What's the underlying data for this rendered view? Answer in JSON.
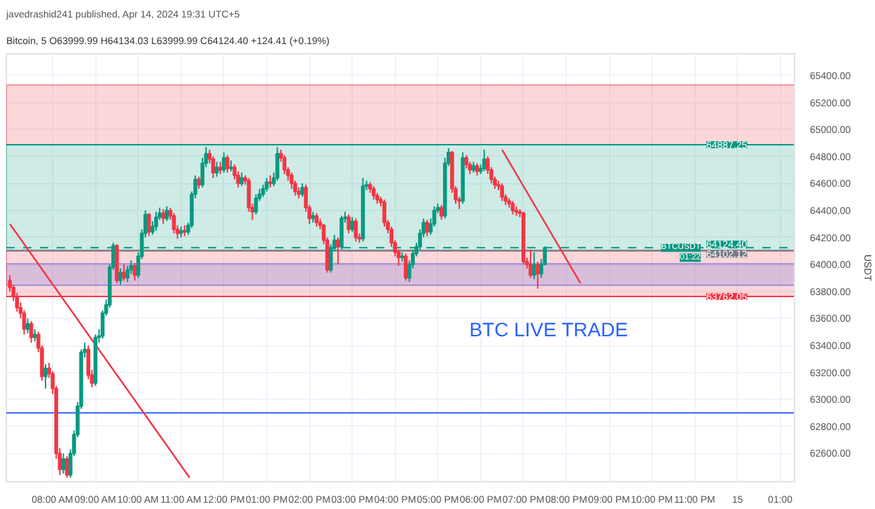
{
  "chart_data": {
    "type": "candlestick",
    "title": "javedrashid241 published, Apr 14, 2024 19:31 UTC+5",
    "subtitle": "Bitcoin, 5  O63999.99 H64134.03 L63999.99 C64124.40 +124.41 (+0.19%)",
    "ylabel": "USDT",
    "colors": [
      "#f23645",
      "#f23645",
      "#f23645",
      "#f23645",
      "#f23645",
      "#089981",
      "#f23645",
      "#089981",
      "#f23645",
      "#f23645",
      "#089981",
      "#f23645",
      "#f23645",
      "#f23645",
      "#f23645",
      "#089981",
      "#f23645",
      "#089981",
      "#089981",
      "#089981",
      "#089981",
      "#089981",
      "#f23645",
      "#f23645",
      "#089981",
      "#089981",
      "#089981",
      "#089981",
      "#089981",
      "#089981",
      "#f23645",
      "#089981",
      "#f23645",
      "#089981",
      "#089981",
      "#f23645",
      "#089981",
      "#089981",
      "#089981",
      "#f23645",
      "#089981",
      "#089981",
      "#089981",
      "#f23645",
      "#089981",
      "#f23645",
      "#f23645",
      "#f23645",
      "#089981",
      "#f23645",
      "#089981",
      "#089981",
      "#089981",
      "#f23645",
      "#089981",
      "#089981",
      "#f23645",
      "#f23645",
      "#089981",
      "#f23645",
      "#089981",
      "#f23645",
      "#089981",
      "#f23645",
      "#f23645",
      "#089981",
      "#f23645",
      "#f23645",
      "#f23645",
      "#089981",
      "#089981",
      "#089981",
      "#089981",
      "#f23645",
      "#089981",
      "#089981",
      "#f23645",
      "#f23645",
      "#f23645",
      "#f23645",
      "#f23645",
      "#f23645",
      "#089981",
      "#f23645",
      "#f23645",
      "#089981",
      "#f23645",
      "#f23645",
      "#f23645",
      "#f23645",
      "#089981",
      "#089981",
      "#f23645",
      "#089981",
      "#089981",
      "#f23645",
      "#089981",
      "#f23645",
      "#f23645",
      "#089981",
      "#089981",
      "#f23645",
      "#f23645",
      "#f23645",
      "#f23645",
      "#f23645",
      "#f23645",
      "#f23645",
      "#f23645",
      "#f23645",
      "#089981",
      "#f23645",
      "#089981",
      "#089981",
      "#089981",
      "#089981",
      "#089981",
      "#f23645",
      "#089981",
      "#089981",
      "#089981",
      "#f23645",
      "#089981",
      "#089981",
      "#f23645",
      "#f23645",
      "#f23645",
      "#089981",
      "#f23645",
      "#f23645",
      "#089981",
      "#f23645",
      "#089981",
      "#089981",
      "#f23645",
      "#f23645",
      "#f23645",
      "#f23645",
      "#f23645",
      "#f23645",
      "#f23645",
      "#f23645",
      "#f23645",
      "#f23645",
      "#f23645",
      "#f23645",
      "#f23645",
      "#089981",
      "#f23645",
      "#089981",
      "#089981"
    ],
    "x": [
      "2024-04-14T07:00",
      "2024-04-14T07:05",
      "2024-04-14T07:10",
      "2024-04-14T07:15",
      "2024-04-14T07:20",
      "2024-04-14T07:25",
      "2024-04-14T07:30",
      "2024-04-14T07:35",
      "2024-04-14T07:40",
      "2024-04-14T07:45",
      "2024-04-14T07:50",
      "2024-04-14T07:55",
      "2024-04-14T08:00",
      "2024-04-14T08:05",
      "2024-04-14T08:10",
      "2024-04-14T08:15",
      "2024-04-14T08:20",
      "2024-04-14T08:25",
      "2024-04-14T08:30",
      "2024-04-14T08:35",
      "2024-04-14T08:40",
      "2024-04-14T08:45",
      "2024-04-14T08:50",
      "2024-04-14T08:55",
      "2024-04-14T09:00",
      "2024-04-14T09:05",
      "2024-04-14T09:10",
      "2024-04-14T09:15",
      "2024-04-14T09:20",
      "2024-04-14T09:25",
      "2024-04-14T09:30",
      "2024-04-14T09:35",
      "2024-04-14T09:40",
      "2024-04-14T09:45",
      "2024-04-14T09:50",
      "2024-04-14T09:55",
      "2024-04-14T10:00",
      "2024-04-14T10:05",
      "2024-04-14T10:10",
      "2024-04-14T10:15",
      "2024-04-14T10:20",
      "2024-04-14T10:25",
      "2024-04-14T10:30",
      "2024-04-14T10:35",
      "2024-04-14T10:40",
      "2024-04-14T10:45",
      "2024-04-14T10:50",
      "2024-04-14T10:55",
      "2024-04-14T11:00",
      "2024-04-14T11:05",
      "2024-04-14T11:10",
      "2024-04-14T11:15",
      "2024-04-14T11:20",
      "2024-04-14T11:25",
      "2024-04-14T11:30",
      "2024-04-14T11:35",
      "2024-04-14T11:40",
      "2024-04-14T11:45",
      "2024-04-14T11:50",
      "2024-04-14T11:55",
      "2024-04-14T12:00",
      "2024-04-14T12:05",
      "2024-04-14T12:10",
      "2024-04-14T12:15",
      "2024-04-14T12:20",
      "2024-04-14T12:25",
      "2024-04-14T12:30",
      "2024-04-14T12:35",
      "2024-04-14T12:40",
      "2024-04-14T12:45",
      "2024-04-14T12:50",
      "2024-04-14T12:55",
      "2024-04-14T13:00",
      "2024-04-14T13:05",
      "2024-04-14T13:10",
      "2024-04-14T13:15",
      "2024-04-14T13:20",
      "2024-04-14T13:25",
      "2024-04-14T13:30",
      "2024-04-14T13:35",
      "2024-04-14T13:40",
      "2024-04-14T13:45",
      "2024-04-14T13:50",
      "2024-04-14T13:55",
      "2024-04-14T14:00",
      "2024-04-14T14:05",
      "2024-04-14T14:10",
      "2024-04-14T14:15",
      "2024-04-14T14:20",
      "2024-04-14T14:25",
      "2024-04-14T14:30",
      "2024-04-14T14:35",
      "2024-04-14T14:40",
      "2024-04-14T14:45",
      "2024-04-14T14:50",
      "2024-04-14T14:55",
      "2024-04-14T15:00",
      "2024-04-14T15:05",
      "2024-04-14T15:10",
      "2024-04-14T15:15",
      "2024-04-14T15:20",
      "2024-04-14T15:25",
      "2024-04-14T15:30",
      "2024-04-14T15:35",
      "2024-04-14T15:40",
      "2024-04-14T15:45",
      "2024-04-14T15:50",
      "2024-04-14T15:55",
      "2024-04-14T16:00",
      "2024-04-14T16:05",
      "2024-04-14T16:10",
      "2024-04-14T16:15",
      "2024-04-14T16:20",
      "2024-04-14T16:25",
      "2024-04-14T16:30",
      "2024-04-14T16:35",
      "2024-04-14T16:40",
      "2024-04-14T16:45",
      "2024-04-14T16:50",
      "2024-04-14T16:55",
      "2024-04-14T17:00",
      "2024-04-14T17:05",
      "2024-04-14T17:10",
      "2024-04-14T17:15",
      "2024-04-14T17:20",
      "2024-04-14T17:25",
      "2024-04-14T17:30",
      "2024-04-14T17:35",
      "2024-04-14T17:40",
      "2024-04-14T17:45",
      "2024-04-14T17:50",
      "2024-04-14T17:55",
      "2024-04-14T18:00",
      "2024-04-14T18:05",
      "2024-04-14T18:10",
      "2024-04-14T18:15",
      "2024-04-14T18:20",
      "2024-04-14T18:25",
      "2024-04-14T18:30",
      "2024-04-14T18:35",
      "2024-04-14T18:40",
      "2024-04-14T18:45",
      "2024-04-14T18:50",
      "2024-04-14T18:55",
      "2024-04-14T19:00",
      "2024-04-14T19:05",
      "2024-04-14T19:10",
      "2024-04-14T19:15",
      "2024-04-14T19:20",
      "2024-04-14T19:25",
      "2024-04-14T19:30"
    ],
    "ohlc": [
      [
        63880,
        63920,
        63800,
        63830
      ],
      [
        63830,
        63850,
        63730,
        63760
      ],
      [
        63760,
        63790,
        63650,
        63680
      ],
      [
        63680,
        63720,
        63600,
        63640
      ],
      [
        63640,
        63660,
        63480,
        63520
      ],
      [
        63520,
        63600,
        63490,
        63560
      ],
      [
        63560,
        63580,
        63420,
        63460
      ],
      [
        63460,
        63520,
        63430,
        63480
      ],
      [
        63480,
        63500,
        63350,
        63380
      ],
      [
        63380,
        63400,
        63140,
        63170
      ],
      [
        63170,
        63260,
        63080,
        63230
      ],
      [
        63230,
        63270,
        63160,
        63190
      ],
      [
        63190,
        63210,
        63040,
        63080
      ],
      [
        63080,
        63100,
        62560,
        62600
      ],
      [
        62600,
        62640,
        62440,
        62480
      ],
      [
        62480,
        62600,
        62450,
        62560
      ],
      [
        62560,
        62580,
        62420,
        62440
      ],
      [
        62440,
        62630,
        62420,
        62600
      ],
      [
        62600,
        62770,
        62580,
        62740
      ],
      [
        62740,
        62980,
        62720,
        62950
      ],
      [
        62950,
        63370,
        62930,
        63350
      ],
      [
        63350,
        63420,
        63310,
        63370
      ],
      [
        63370,
        63400,
        63150,
        63180
      ],
      [
        63180,
        63220,
        63090,
        63120
      ],
      [
        63120,
        63480,
        63100,
        63460
      ],
      [
        63460,
        63520,
        63420,
        63470
      ],
      [
        63470,
        63660,
        63450,
        63640
      ],
      [
        63640,
        63740,
        63620,
        63700
      ],
      [
        63700,
        64000,
        63680,
        63980
      ],
      [
        63980,
        64160,
        63960,
        64140
      ],
      [
        64140,
        64150,
        63860,
        63880
      ],
      [
        63880,
        63970,
        63850,
        63940
      ],
      [
        63940,
        64000,
        63880,
        63900
      ],
      [
        63900,
        63990,
        63870,
        63960
      ],
      [
        63960,
        64030,
        63930,
        63990
      ],
      [
        63990,
        64010,
        63880,
        63920
      ],
      [
        63920,
        64090,
        63900,
        64060
      ],
      [
        64060,
        64260,
        64040,
        64230
      ],
      [
        64230,
        64400,
        64200,
        64370
      ],
      [
        64370,
        64380,
        64210,
        64240
      ],
      [
        64240,
        64320,
        64220,
        64280
      ],
      [
        64280,
        64390,
        64250,
        64350
      ],
      [
        64350,
        64420,
        64330,
        64380
      ],
      [
        64380,
        64410,
        64300,
        64340
      ],
      [
        64340,
        64430,
        64320,
        64400
      ],
      [
        64400,
        64420,
        64330,
        64360
      ],
      [
        64360,
        64380,
        64230,
        64260
      ],
      [
        64260,
        64290,
        64190,
        64230
      ],
      [
        64230,
        64280,
        64200,
        64250
      ],
      [
        64250,
        64290,
        64210,
        64240
      ],
      [
        64240,
        64310,
        64220,
        64290
      ],
      [
        64290,
        64540,
        64270,
        64520
      ],
      [
        64520,
        64660,
        64490,
        64630
      ],
      [
        64630,
        64650,
        64560,
        64590
      ],
      [
        64590,
        64790,
        64570,
        64750
      ],
      [
        64750,
        64870,
        64720,
        64820
      ],
      [
        64820,
        64850,
        64750,
        64780
      ],
      [
        64780,
        64800,
        64640,
        64680
      ],
      [
        64680,
        64760,
        64650,
        64720
      ],
      [
        64720,
        64760,
        64670,
        64700
      ],
      [
        64700,
        64830,
        64680,
        64790
      ],
      [
        64790,
        64810,
        64680,
        64710
      ],
      [
        64710,
        64770,
        64690,
        64720
      ],
      [
        64720,
        64740,
        64630,
        64660
      ],
      [
        64660,
        64690,
        64570,
        64600
      ],
      [
        64600,
        64680,
        64580,
        64640
      ],
      [
        64640,
        64660,
        64590,
        64620
      ],
      [
        64620,
        64640,
        64390,
        64420
      ],
      [
        64420,
        64450,
        64330,
        64390
      ],
      [
        64390,
        64520,
        64370,
        64490
      ],
      [
        64490,
        64560,
        64470,
        64520
      ],
      [
        64520,
        64590,
        64500,
        64560
      ],
      [
        64560,
        64640,
        64540,
        64610
      ],
      [
        64610,
        64660,
        64570,
        64600
      ],
      [
        64600,
        64680,
        64580,
        64640
      ],
      [
        64640,
        64870,
        64620,
        64820
      ],
      [
        64820,
        64850,
        64760,
        64790
      ],
      [
        64790,
        64810,
        64670,
        64700
      ],
      [
        64700,
        64720,
        64620,
        64660
      ],
      [
        64660,
        64680,
        64560,
        64600
      ],
      [
        64600,
        64620,
        64510,
        64540
      ],
      [
        64540,
        64570,
        64490,
        64520
      ],
      [
        64520,
        64600,
        64500,
        64570
      ],
      [
        64570,
        64590,
        64390,
        64420
      ],
      [
        64420,
        64440,
        64300,
        64340
      ],
      [
        64340,
        64390,
        64310,
        64360
      ],
      [
        64360,
        64380,
        64280,
        64310
      ],
      [
        64310,
        64340,
        64260,
        64290
      ],
      [
        64290,
        64300,
        64150,
        64180
      ],
      [
        64180,
        64200,
        63940,
        63960
      ],
      [
        63960,
        64150,
        63940,
        64120
      ],
      [
        64120,
        64220,
        64100,
        64180
      ],
      [
        64180,
        64200,
        64000,
        64130
      ],
      [
        64130,
        64360,
        64110,
        64340
      ],
      [
        64340,
        64390,
        64310,
        64350
      ],
      [
        64350,
        64370,
        64230,
        64260
      ],
      [
        64260,
        64350,
        64240,
        64320
      ],
      [
        64320,
        64340,
        64170,
        64200
      ],
      [
        64200,
        64230,
        64160,
        64190
      ],
      [
        64190,
        64640,
        64170,
        64580
      ],
      [
        64580,
        64620,
        64550,
        64590
      ],
      [
        64590,
        64610,
        64530,
        64560
      ],
      [
        64560,
        64580,
        64480,
        64510
      ],
      [
        64510,
        64530,
        64450,
        64480
      ],
      [
        64480,
        64500,
        64430,
        64460
      ],
      [
        64460,
        64480,
        64280,
        64310
      ],
      [
        64310,
        64330,
        64230,
        64260
      ],
      [
        64260,
        64280,
        64130,
        64160
      ],
      [
        64160,
        64180,
        64060,
        64090
      ],
      [
        64090,
        64110,
        63990,
        64050
      ],
      [
        64050,
        64090,
        64020,
        64060
      ],
      [
        64060,
        64080,
        63880,
        63900
      ],
      [
        63900,
        64030,
        63870,
        64000
      ],
      [
        64000,
        64110,
        63970,
        64080
      ],
      [
        64080,
        64160,
        64060,
        64130
      ],
      [
        64130,
        64260,
        64110,
        64230
      ],
      [
        64230,
        64340,
        64200,
        64310
      ],
      [
        64310,
        64330,
        64210,
        64240
      ],
      [
        64240,
        64340,
        64220,
        64300
      ],
      [
        64300,
        64430,
        64280,
        64400
      ],
      [
        64400,
        64450,
        64380,
        64420
      ],
      [
        64420,
        64440,
        64330,
        64360
      ],
      [
        64360,
        64790,
        64340,
        64750
      ],
      [
        64750,
        64860,
        64730,
        64830
      ],
      [
        64830,
        64840,
        64530,
        64560
      ],
      [
        64560,
        64580,
        64450,
        64480
      ],
      [
        64480,
        64500,
        64410,
        64470
      ],
      [
        64470,
        64830,
        64450,
        64790
      ],
      [
        64790,
        64810,
        64710,
        64740
      ],
      [
        64740,
        64760,
        64670,
        64700
      ],
      [
        64700,
        64760,
        64680,
        64730
      ],
      [
        64730,
        64750,
        64660,
        64690
      ],
      [
        64690,
        64740,
        64670,
        64710
      ],
      [
        64710,
        64850,
        64690,
        64780
      ],
      [
        64780,
        64800,
        64670,
        64700
      ],
      [
        64700,
        64720,
        64600,
        64630
      ],
      [
        64630,
        64650,
        64560,
        64590
      ],
      [
        64590,
        64620,
        64550,
        64580
      ],
      [
        64580,
        64600,
        64470,
        64500
      ],
      [
        64500,
        64520,
        64440,
        64470
      ],
      [
        64470,
        64490,
        64420,
        64450
      ],
      [
        64450,
        64470,
        64370,
        64400
      ],
      [
        64400,
        64430,
        64360,
        64390
      ],
      [
        64390,
        64410,
        64350,
        64380
      ],
      [
        64380,
        64390,
        64000,
        64020
      ],
      [
        64020,
        64050,
        63970,
        64000
      ],
      [
        64000,
        64110,
        63900,
        63920
      ],
      [
        63920,
        64090,
        63890,
        64000
      ],
      [
        64000,
        64020,
        63820,
        63930
      ],
      [
        63930,
        64040,
        63900,
        63999.99
      ],
      [
        63999.99,
        64134.03,
        63999.99,
        64124.4
      ]
    ],
    "series": [
      {
        "type": "line",
        "color": "#f23645",
        "x": [
          "2024-04-14T07:00",
          "2024-04-14T11:12"
        ],
        "values": [
          64300,
          62420
        ]
      },
      {
        "type": "line",
        "color": "#f23645",
        "x": [
          "2024-04-14T18:30",
          "2024-04-14T20:20"
        ],
        "values": [
          64850,
          63860
        ]
      }
    ],
    "ref_lines": [
      {
        "axis": "y",
        "value": 62900,
        "color": "#2962ff",
        "line_style": "solid"
      },
      {
        "axis": "y",
        "value": 64124.4,
        "label": "64124.40",
        "color": "#089981",
        "line_style": "dashed"
      },
      {
        "axis": "y",
        "value": 64887.25,
        "label": "64887.25",
        "color": "#089981",
        "line_style": "solid"
      },
      {
        "axis": "y",
        "value": 64102.12,
        "label": "64102.12",
        "color": "#787b86",
        "line_style": "solid"
      },
      {
        "axis": "y",
        "value": 63762.05,
        "label": "63762.05",
        "color": "#f23645",
        "line_style": "solid"
      }
    ],
    "bands": [
      {
        "axis": "y",
        "from": 64887.25,
        "to": 65330,
        "color": "#f23645"
      },
      {
        "axis": "y",
        "from": 63845,
        "to": 64005,
        "color": "#2962ff"
      },
      {
        "axis": "y",
        "from": 64102.12,
        "to": 64887.25,
        "color": "#089981"
      },
      {
        "axis": "y",
        "from": 63762.05,
        "to": 64102.12,
        "color": "#f23645"
      }
    ],
    "annotations": [
      {
        "text": "BTCUSDT",
        "y": 64124.4
      },
      {
        "text": "01:22",
        "y": 64050
      },
      "BTC LIVE TRADE"
    ],
    "xlim": [
      "2024-04-14T06:55",
      "2024-04-15T01:20"
    ],
    "xticks": [
      {
        "value": "2024-04-14T08:00",
        "label": "08:00 AM"
      },
      {
        "value": "2024-04-14T09:00",
        "label": "09:00 AM"
      },
      {
        "value": "2024-04-14T10:00",
        "label": "10:00 AM"
      },
      {
        "value": "2024-04-14T11:00",
        "label": "11:00 AM"
      },
      {
        "value": "2024-04-14T12:00",
        "label": "12:00 PM"
      },
      {
        "value": "2024-04-14T13:00",
        "label": "01:00 PM"
      },
      {
        "value": "2024-04-14T14:00",
        "label": "02:00 PM"
      },
      {
        "value": "2024-04-14T15:00",
        "label": "03:00 PM"
      },
      {
        "value": "2024-04-14T16:00",
        "label": "04:00 PM"
      },
      {
        "value": "2024-04-14T17:00",
        "label": "05:00 PM"
      },
      {
        "value": "2024-04-14T18:00",
        "label": "06:00 PM"
      },
      {
        "value": "2024-04-14T19:00",
        "label": "07:00 PM"
      },
      {
        "value": "2024-04-14T20:00",
        "label": "08:00 PM"
      },
      {
        "value": "2024-04-14T21:00",
        "label": "09:00 PM"
      },
      {
        "value": "2024-04-14T22:00",
        "label": "10:00 PM"
      },
      {
        "value": "2024-04-14T23:00",
        "label": "11:00 PM"
      },
      {
        "value": "2024-04-15T00:00",
        "label": "15"
      },
      {
        "value": "2024-04-15T01:00",
        "label": "01:00"
      }
    ],
    "ylim": [
      62390,
      65560
    ],
    "yticks": [
      {
        "value": 62600,
        "label": "62600.00"
      },
      {
        "value": 62800,
        "label": "62800.00"
      },
      {
        "value": 63000,
        "label": "63000.00"
      },
      {
        "value": 63200,
        "label": "63200.00"
      },
      {
        "value": 63400,
        "label": "63400.00"
      },
      {
        "value": 63600,
        "label": "63600.00"
      },
      {
        "value": 63800,
        "label": "63800.00"
      },
      {
        "value": 64000,
        "label": "64000.00"
      },
      {
        "value": 64200,
        "label": "64200.00"
      },
      {
        "value": 64400,
        "label": "64400.00"
      },
      {
        "value": 64600,
        "label": "64600.00"
      },
      {
        "value": 64800,
        "label": "64800.00"
      },
      {
        "value": 65000,
        "label": "65000.00"
      },
      {
        "value": 65200,
        "label": "65200.00"
      },
      {
        "value": 65400,
        "label": "65400.00"
      }
    ],
    "grid": true
  }
}
